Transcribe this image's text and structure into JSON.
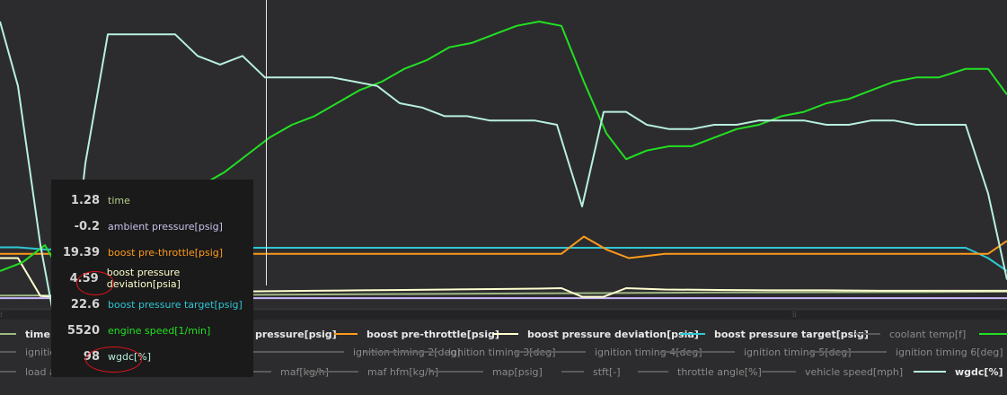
{
  "chart_data": {
    "type": "line",
    "series": [
      {
        "name": "wgdc[%]",
        "color": "#b8f0dc",
        "x": [
          0,
          20,
          45,
          70,
          95,
          120,
          145,
          170,
          195,
          220,
          245,
          270,
          295,
          320,
          345,
          370,
          395,
          420,
          445,
          470,
          495,
          520,
          545,
          570,
          595,
          620,
          648,
          672,
          697,
          720,
          745,
          770,
          795,
          820,
          845,
          870,
          895,
          920,
          945,
          970,
          995,
          1020,
          1045,
          1075,
          1100,
          1121
        ],
        "y": [
          55,
          40,
          3,
          -25,
          22,
          52,
          52,
          52,
          52,
          47,
          45,
          47,
          42,
          42,
          42,
          42,
          41,
          40,
          36,
          35,
          33,
          33,
          32,
          32,
          32,
          31,
          12,
          34,
          34,
          31,
          30,
          30,
          31,
          31,
          32,
          32,
          32,
          31,
          31,
          32,
          32,
          31,
          31,
          31,
          15,
          -5
        ]
      },
      {
        "name": "engine speed[1/min]",
        "color": "#22e022",
        "x": [
          0,
          25,
          50,
          75,
          100,
          125,
          150,
          175,
          200,
          225,
          250,
          275,
          300,
          325,
          350,
          375,
          400,
          425,
          450,
          475,
          500,
          525,
          550,
          575,
          600,
          625,
          650,
          675,
          697,
          720,
          745,
          770,
          795,
          820,
          845,
          870,
          895,
          920,
          945,
          970,
          995,
          1020,
          1045,
          1075,
          1100,
          1121
        ],
        "y": [
          -3,
          -1,
          3,
          -6,
          -4,
          -4,
          5,
          10,
          14,
          17,
          20,
          24,
          28,
          31,
          33,
          36,
          39,
          41,
          44,
          46,
          49,
          50,
          52,
          54,
          55,
          54,
          41,
          29,
          23,
          25,
          26,
          26,
          28,
          30,
          31,
          33,
          34,
          36,
          37,
          39,
          41,
          42,
          42,
          44,
          44,
          38
        ]
      },
      {
        "name": "boost pre-throttle[psig]",
        "color": "#ff9a1a",
        "x": [
          0,
          60,
          120,
          170,
          220,
          280,
          340,
          400,
          460,
          520,
          580,
          625,
          650,
          675,
          700,
          740,
          780,
          850,
          920,
          980,
          1040,
          1075,
          1100,
          1121
        ],
        "y": [
          1,
          1,
          1,
          1,
          1,
          1,
          1,
          1,
          1,
          1,
          1,
          1,
          5,
          2,
          0,
          1,
          1,
          1,
          1,
          1,
          1,
          1,
          1,
          4
        ]
      },
      {
        "name": "boost pressure target[psig]",
        "color": "#2ec7d4",
        "x": [
          0,
          20,
          50,
          280,
          1075,
          1100,
          1121
        ],
        "y": [
          2.5,
          2.5,
          2,
          2.4,
          2.4,
          0,
          -3
        ]
      },
      {
        "name": "boost pressure deviation[psia]",
        "color": "#ffffd0",
        "x": [
          0,
          20,
          45,
          70,
          100,
          150,
          200,
          250,
          300,
          350,
          400,
          450,
          500,
          550,
          600,
          625,
          648,
          672,
          697,
          740,
          800,
          860,
          920,
          980,
          1040,
          1100,
          1121
        ],
        "y": [
          0,
          0,
          -8.8,
          -9.1,
          -9,
          -8.6,
          -8.2,
          -7.8,
          -7.7,
          -7.6,
          -7.5,
          -7.4,
          -7.3,
          -7.2,
          -7.1,
          -7,
          -9,
          -9,
          -7,
          -7.3,
          -7.4,
          -7.5,
          -7.5,
          -7.6,
          -7.6,
          -7.6,
          -7.6
        ]
      },
      {
        "name": "ambient pressure[psig]",
        "color": "#c9b8ff",
        "x": [
          0,
          1121
        ],
        "y": [
          -9.3,
          -9.3
        ]
      },
      {
        "name": "time",
        "color": "#a0b884",
        "x": [
          0,
          200,
          400,
          600,
          800,
          1000,
          1121
        ],
        "y": [
          -8.7,
          -8.6,
          -8.4,
          -8.2,
          -8.0,
          -7.9,
          -7.8
        ]
      }
    ],
    "ylim": [
      -12,
      60
    ],
    "xlim": [
      0,
      1121
    ]
  },
  "cursor": {
    "color": "#e8e8e8"
  },
  "tooltip": {
    "rows": [
      {
        "value": "1.28",
        "label": "time",
        "color": "#b5cf8a"
      },
      {
        "value": "-0.2",
        "label": "ambient pressure[psig]",
        "color": "#c9c3ea"
      },
      {
        "value": "19.39",
        "label": "boost pre-throttle[psig]",
        "color": "#ff9a1a"
      },
      {
        "value": "4.59",
        "label": "boost pressure deviation[psia]",
        "color": "#ffffcc"
      },
      {
        "value": "22.6",
        "label": "boost pressure target[psig]",
        "color": "#2ec7d4"
      },
      {
        "value": "5520",
        "label": "engine speed[1/min]",
        "color": "#22e022"
      },
      {
        "value": "98",
        "label": "wgdc[%]",
        "color": "#b8f0dc"
      }
    ]
  },
  "legend": {
    "rows": [
      [
        {
          "label": "time",
          "color": "#a0b884",
          "active": true
        },
        {
          "label": "pressure[psig]",
          "color": "#c9b8ff",
          "active": true
        },
        {
          "label": "boost pre-throttle[psig]",
          "color": "#ff9a1a",
          "active": true
        },
        {
          "label": "boost pressure deviation[psia]",
          "color": "#ffffd0",
          "active": true
        },
        {
          "label": "boost pressure target[psig]",
          "color": "#2ec7d4",
          "active": true
        },
        {
          "label": "coolant temp[f]",
          "color": "#5a5a5a",
          "active": false
        },
        {
          "label": "",
          "color": "#22e022",
          "active": true
        }
      ],
      [
        {
          "label": "ignition",
          "color": "#5a5a5a",
          "active": false
        },
        {
          "label": "ignition timing 2[deg]",
          "color": "#5a5a5a",
          "active": false
        },
        {
          "label": "ignition timing 3[deg]",
          "color": "#5a5a5a",
          "active": false
        },
        {
          "label": "ignition timing 4[deg]",
          "color": "#5a5a5a",
          "active": false
        },
        {
          "label": "ignition timing 5[deg]",
          "color": "#5a5a5a",
          "active": false
        },
        {
          "label": "ignition timing 6[deg]",
          "color": "#5a5a5a",
          "active": false
        }
      ],
      [
        {
          "label": "load act. rel.[%]",
          "color": "#5a5a5a",
          "active": false
        },
        {
          "label": "load target rel.[%]",
          "color": "#5a5a5a",
          "active": false
        },
        {
          "label": "maf[kg/h]",
          "color": "#5a5a5a",
          "active": false
        },
        {
          "label": "maf hfm[kg/h]",
          "color": "#5a5a5a",
          "active": false
        },
        {
          "label": "map[psig]",
          "color": "#5a5a5a",
          "active": false
        },
        {
          "label": "stft[-]",
          "color": "#5a5a5a",
          "active": false
        },
        {
          "label": "throttle angle[%]",
          "color": "#5a5a5a",
          "active": false
        },
        {
          "label": "vehicle speed[mph]",
          "color": "#5a5a5a",
          "active": false
        },
        {
          "label": "wgdc[%]",
          "color": "#b8f0dc",
          "active": true
        }
      ]
    ]
  }
}
